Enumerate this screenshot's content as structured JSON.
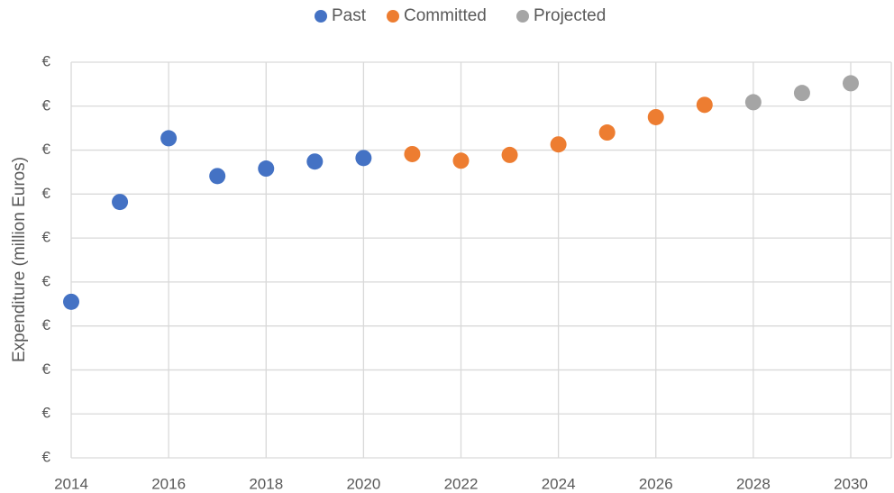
{
  "chart_data": {
    "type": "scatter",
    "y_label": "Expenditure (million Euros)",
    "legend": "top",
    "grid": true,
    "xlim": [
      2014,
      2030
    ],
    "xticks": [
      2014,
      2016,
      2018,
      2020,
      2022,
      2024,
      2026,
      2028,
      2030
    ],
    "ylim": [
      0,
      9
    ],
    "yticks": [
      {
        "value": 0,
        "label": "€"
      },
      {
        "value": 1,
        "label": "€"
      },
      {
        "value": 2,
        "label": "€"
      },
      {
        "value": 3,
        "label": "€"
      },
      {
        "value": 4,
        "label": "€"
      },
      {
        "value": 5,
        "label": "€"
      },
      {
        "value": 6,
        "label": "€"
      },
      {
        "value": 7,
        "label": "€"
      },
      {
        "value": 8,
        "label": "€"
      },
      {
        "value": 9,
        "label": "€"
      }
    ],
    "series": [
      {
        "name": "Past",
        "color": "#4472c4",
        "x": [
          2014,
          2015,
          2016,
          2017,
          2018,
          2019,
          2020
        ],
        "values": [
          3.55,
          5.82,
          7.27,
          6.41,
          6.58,
          6.74,
          6.82
        ]
      },
      {
        "name": "Committed",
        "color": "#ed7d31",
        "x": [
          2021,
          2022,
          2023,
          2024,
          2025,
          2026,
          2027
        ],
        "values": [
          6.91,
          6.76,
          6.89,
          7.13,
          7.4,
          7.75,
          8.03
        ]
      },
      {
        "name": "Projected",
        "color": "#a5a5a5",
        "x": [
          2028,
          2029,
          2030
        ],
        "values": [
          8.09,
          8.3,
          8.52
        ]
      }
    ]
  }
}
